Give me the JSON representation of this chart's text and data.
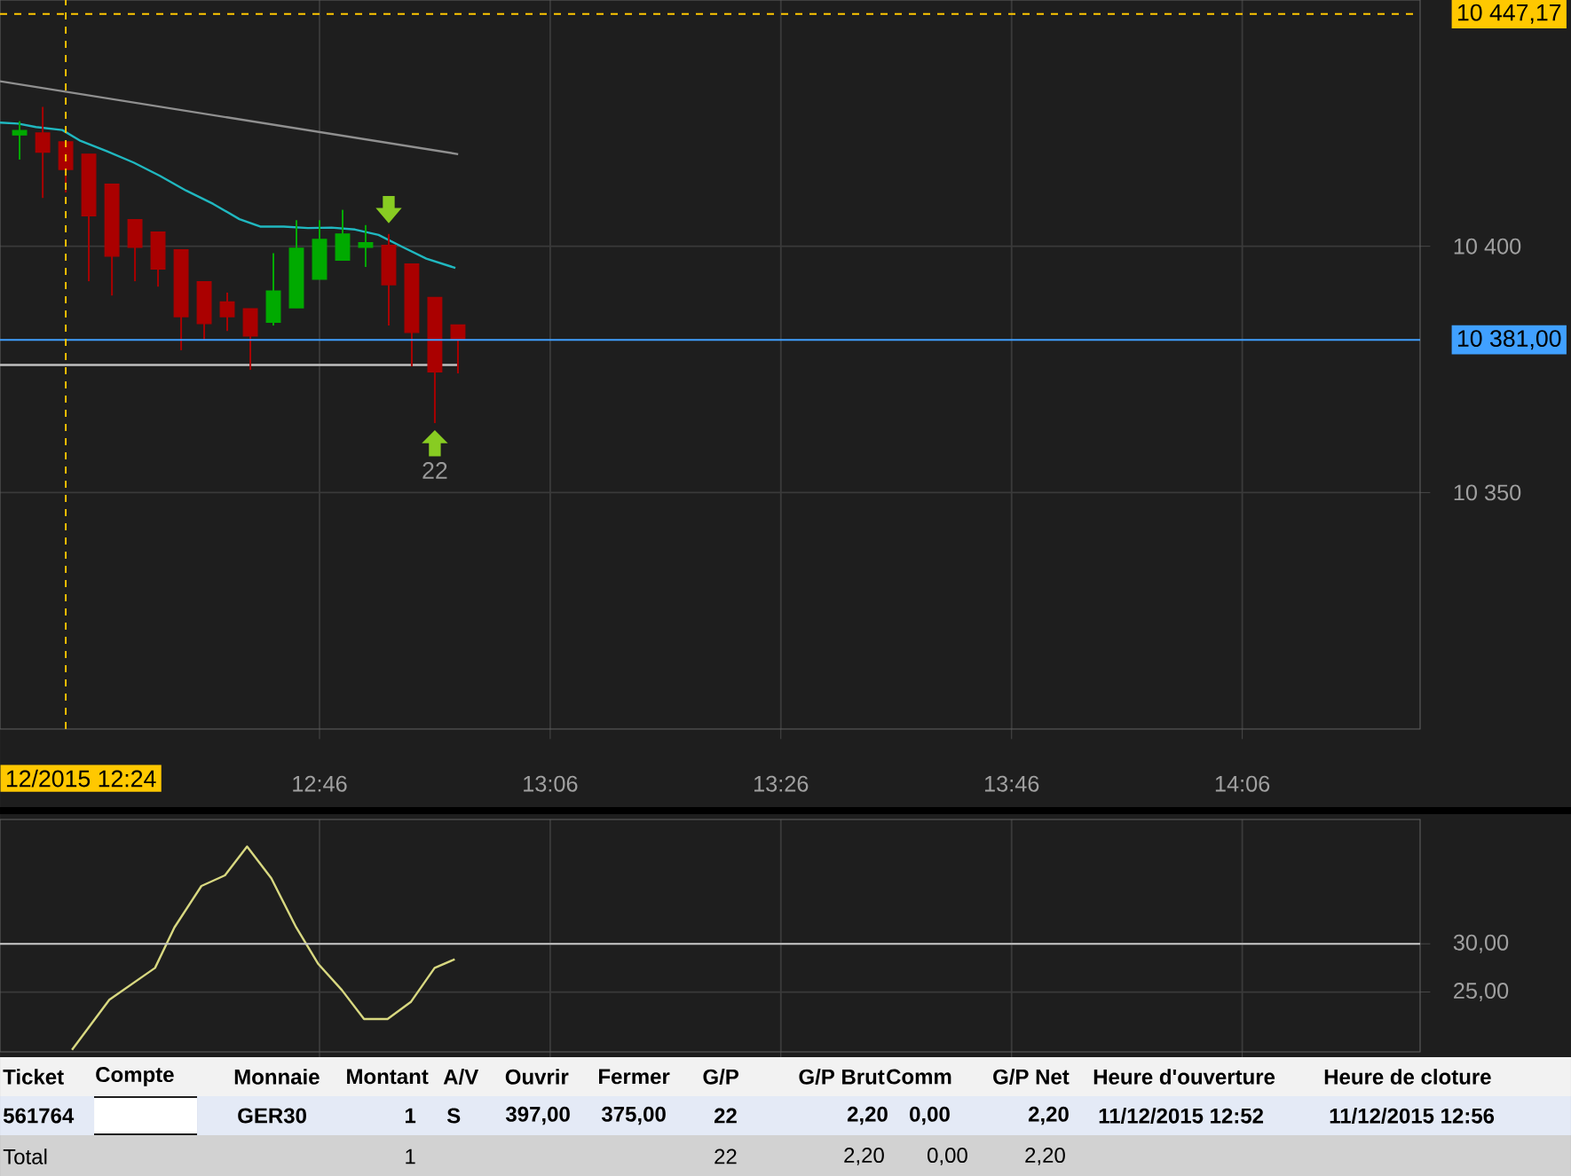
{
  "chart_data": [
    {
      "type": "candlestick",
      "xlim": [
        12.305,
        14.357
      ],
      "ylim": [
        10302,
        10450
      ],
      "xticks": [
        {
          "value": 12.7667,
          "label": "12:46"
        },
        {
          "value": 13.1,
          "label": "13:06"
        },
        {
          "value": 13.4333,
          "label": "13:26"
        },
        {
          "value": 13.7667,
          "label": "13:46"
        },
        {
          "value": 14.1,
          "label": "14:06"
        }
      ],
      "yticks": [
        {
          "value": 10350,
          "label": "10 350"
        },
        {
          "value": 10400,
          "label": "10 400"
        }
      ],
      "grid": true,
      "series": [
        {
          "type": "line",
          "color": "#909090",
          "x": [
            12.305,
            12.967
          ],
          "values": [
            10433.5,
            10418.7
          ]
        },
        {
          "type": "line",
          "color": "#20b8c0",
          "x": [
            12.305,
            12.331,
            12.357,
            12.395,
            12.42,
            12.459,
            12.498,
            12.536,
            12.574,
            12.613,
            12.651,
            12.681,
            12.715,
            12.75,
            12.784,
            12.818,
            12.852,
            12.886,
            12.921,
            12.963
          ],
          "values": [
            10425.1,
            10424.9,
            10424.2,
            10423.6,
            10421.5,
            10419.3,
            10417,
            10414.3,
            10411.3,
            10408.6,
            10405.5,
            10404,
            10404,
            10403.7,
            10403.8,
            10403.4,
            10402.3,
            10399.9,
            10397.5,
            10395.6
          ]
        },
        {
          "type": "line",
          "color": "#c0c0c0",
          "x": [
            12.305,
            12.967
          ],
          "values": [
            10375.9,
            10375.9
          ]
        },
        {
          "x": [
            12.3333,
            12.3667,
            12.4,
            12.4333,
            12.4667,
            12.5,
            12.5333,
            12.5667,
            12.6,
            12.6333,
            12.6667,
            12.7,
            12.7333,
            12.7667,
            12.8,
            12.8333,
            12.8667,
            12.9,
            12.9333,
            12.9667
          ],
          "ohlc": [
            [
              10422.6,
              10425.4,
              10417.6,
              10423.5
            ],
            [
              10423,
              10428.3,
              10409.8,
              10419.1
            ],
            [
              10421.2,
              10421.2,
              10410.9,
              10415.6
            ],
            [
              10418.7,
              10418.7,
              10392.9,
              10406.2
            ],
            [
              10412.6,
              10412.6,
              10390,
              10398
            ],
            [
              10405.4,
              10405.4,
              10392.9,
              10399.8
            ],
            [
              10402.9,
              10402.9,
              10391.8,
              10395.4
            ],
            [
              10399.3,
              10399.3,
              10378.9,
              10385.7
            ],
            [
              10392.8,
              10392.8,
              10380.9,
              10384.3
            ],
            [
              10388.7,
              10390.6,
              10382.8,
              10385.7
            ],
            [
              10387.3,
              10387.3,
              10374.9,
              10381.8
            ],
            [
              10384.6,
              10398.6,
              10383.9,
              10390.9
            ],
            [
              10387.5,
              10405.3,
              10387.5,
              10399.6
            ],
            [
              10393.3,
              10405.3,
              10393.3,
              10401.4
            ],
            [
              10397.2,
              10407.4,
              10397.2,
              10402.5
            ],
            [
              10399.8,
              10404.3,
              10395.8,
              10400.7
            ],
            [
              10400.2,
              10402.5,
              10383.9,
              10392.2
            ],
            [
              10396.4,
              10396.4,
              10375.6,
              10382.5
            ],
            [
              10389.6,
              10389.6,
              10364.1,
              10374.5
            ],
            [
              10384,
              10384,
              10374.2,
              10381
            ]
          ],
          "colors": [
            "#00aa00",
            "#aa0000",
            "#aa0000",
            "#aa0000",
            "#aa0000",
            "#aa0000",
            "#aa0000",
            "#aa0000",
            "#aa0000",
            "#aa0000",
            "#aa0000",
            "#00aa00",
            "#00aa00",
            "#00aa00",
            "#00aa00",
            "#00aa00",
            "#aa0000",
            "#aa0000",
            "#aa0000",
            "#aa0000"
          ]
        }
      ],
      "ref_lines": [
        {
          "axis": "y",
          "value": 10447.17,
          "label": "10 447,17",
          "color": "#ffc800",
          "line_style": "dashed"
        },
        {
          "axis": "y",
          "value": 10381,
          "label": "10 381,00",
          "color": "#40a0ff"
        },
        {
          "axis": "x",
          "value": 12.4,
          "label": "12/2015 12:24",
          "color": "#ffc800",
          "line_style": "dashed"
        }
      ],
      "annotations": [
        "22"
      ]
    },
    {
      "type": "line",
      "xlim": [
        12.305,
        14.357
      ],
      "ylim": [
        18.8,
        42.9
      ],
      "xticks": [
        {
          "value": 12.7667,
          "label": null
        },
        {
          "value": 13.1,
          "label": null
        },
        {
          "value": 13.4333,
          "label": null
        },
        {
          "value": 13.7667,
          "label": null
        },
        {
          "value": 14.1,
          "label": null
        }
      ],
      "yticks": [
        {
          "value": 25,
          "label": "25,00"
        },
        {
          "value": 30,
          "label": "30,00"
        }
      ],
      "grid": true,
      "tick_labels": "y",
      "series": [
        {
          "color": "#d8d880",
          "x": [
            12.409,
            12.463,
            12.529,
            12.557,
            12.596,
            12.63,
            12.662,
            12.697,
            12.733,
            12.765,
            12.799,
            12.831,
            12.865,
            12.899,
            12.933,
            12.962
          ],
          "values": [
            19,
            24.2,
            27.5,
            31.7,
            36,
            37.1,
            40.1,
            36.8,
            31.7,
            27.9,
            25.2,
            22.2,
            22.2,
            24,
            27.5,
            28.4
          ]
        }
      ],
      "ref_lines": [
        {
          "axis": "y",
          "value": 30,
          "color": "#c8c8c8"
        }
      ],
      "annotations": [
        "Ticket",
        "Compte",
        "Monnaie",
        "Montant",
        "A/V",
        "Ouvrir",
        "Fermer",
        "G/P",
        "G/P Brut",
        "Comm",
        "G/P Net",
        "Heure d'ouverture",
        "Heure de cloture",
        "561764",
        "GER30",
        "1",
        "S",
        "397,00",
        "375,00",
        "22",
        "2,20",
        "0,00",
        "2,20",
        "11/12/2015 12:52",
        "11/12/2015 12:56",
        "Total",
        "1",
        "22",
        "2,20",
        "0,00",
        "2,20"
      ]
    }
  ]
}
